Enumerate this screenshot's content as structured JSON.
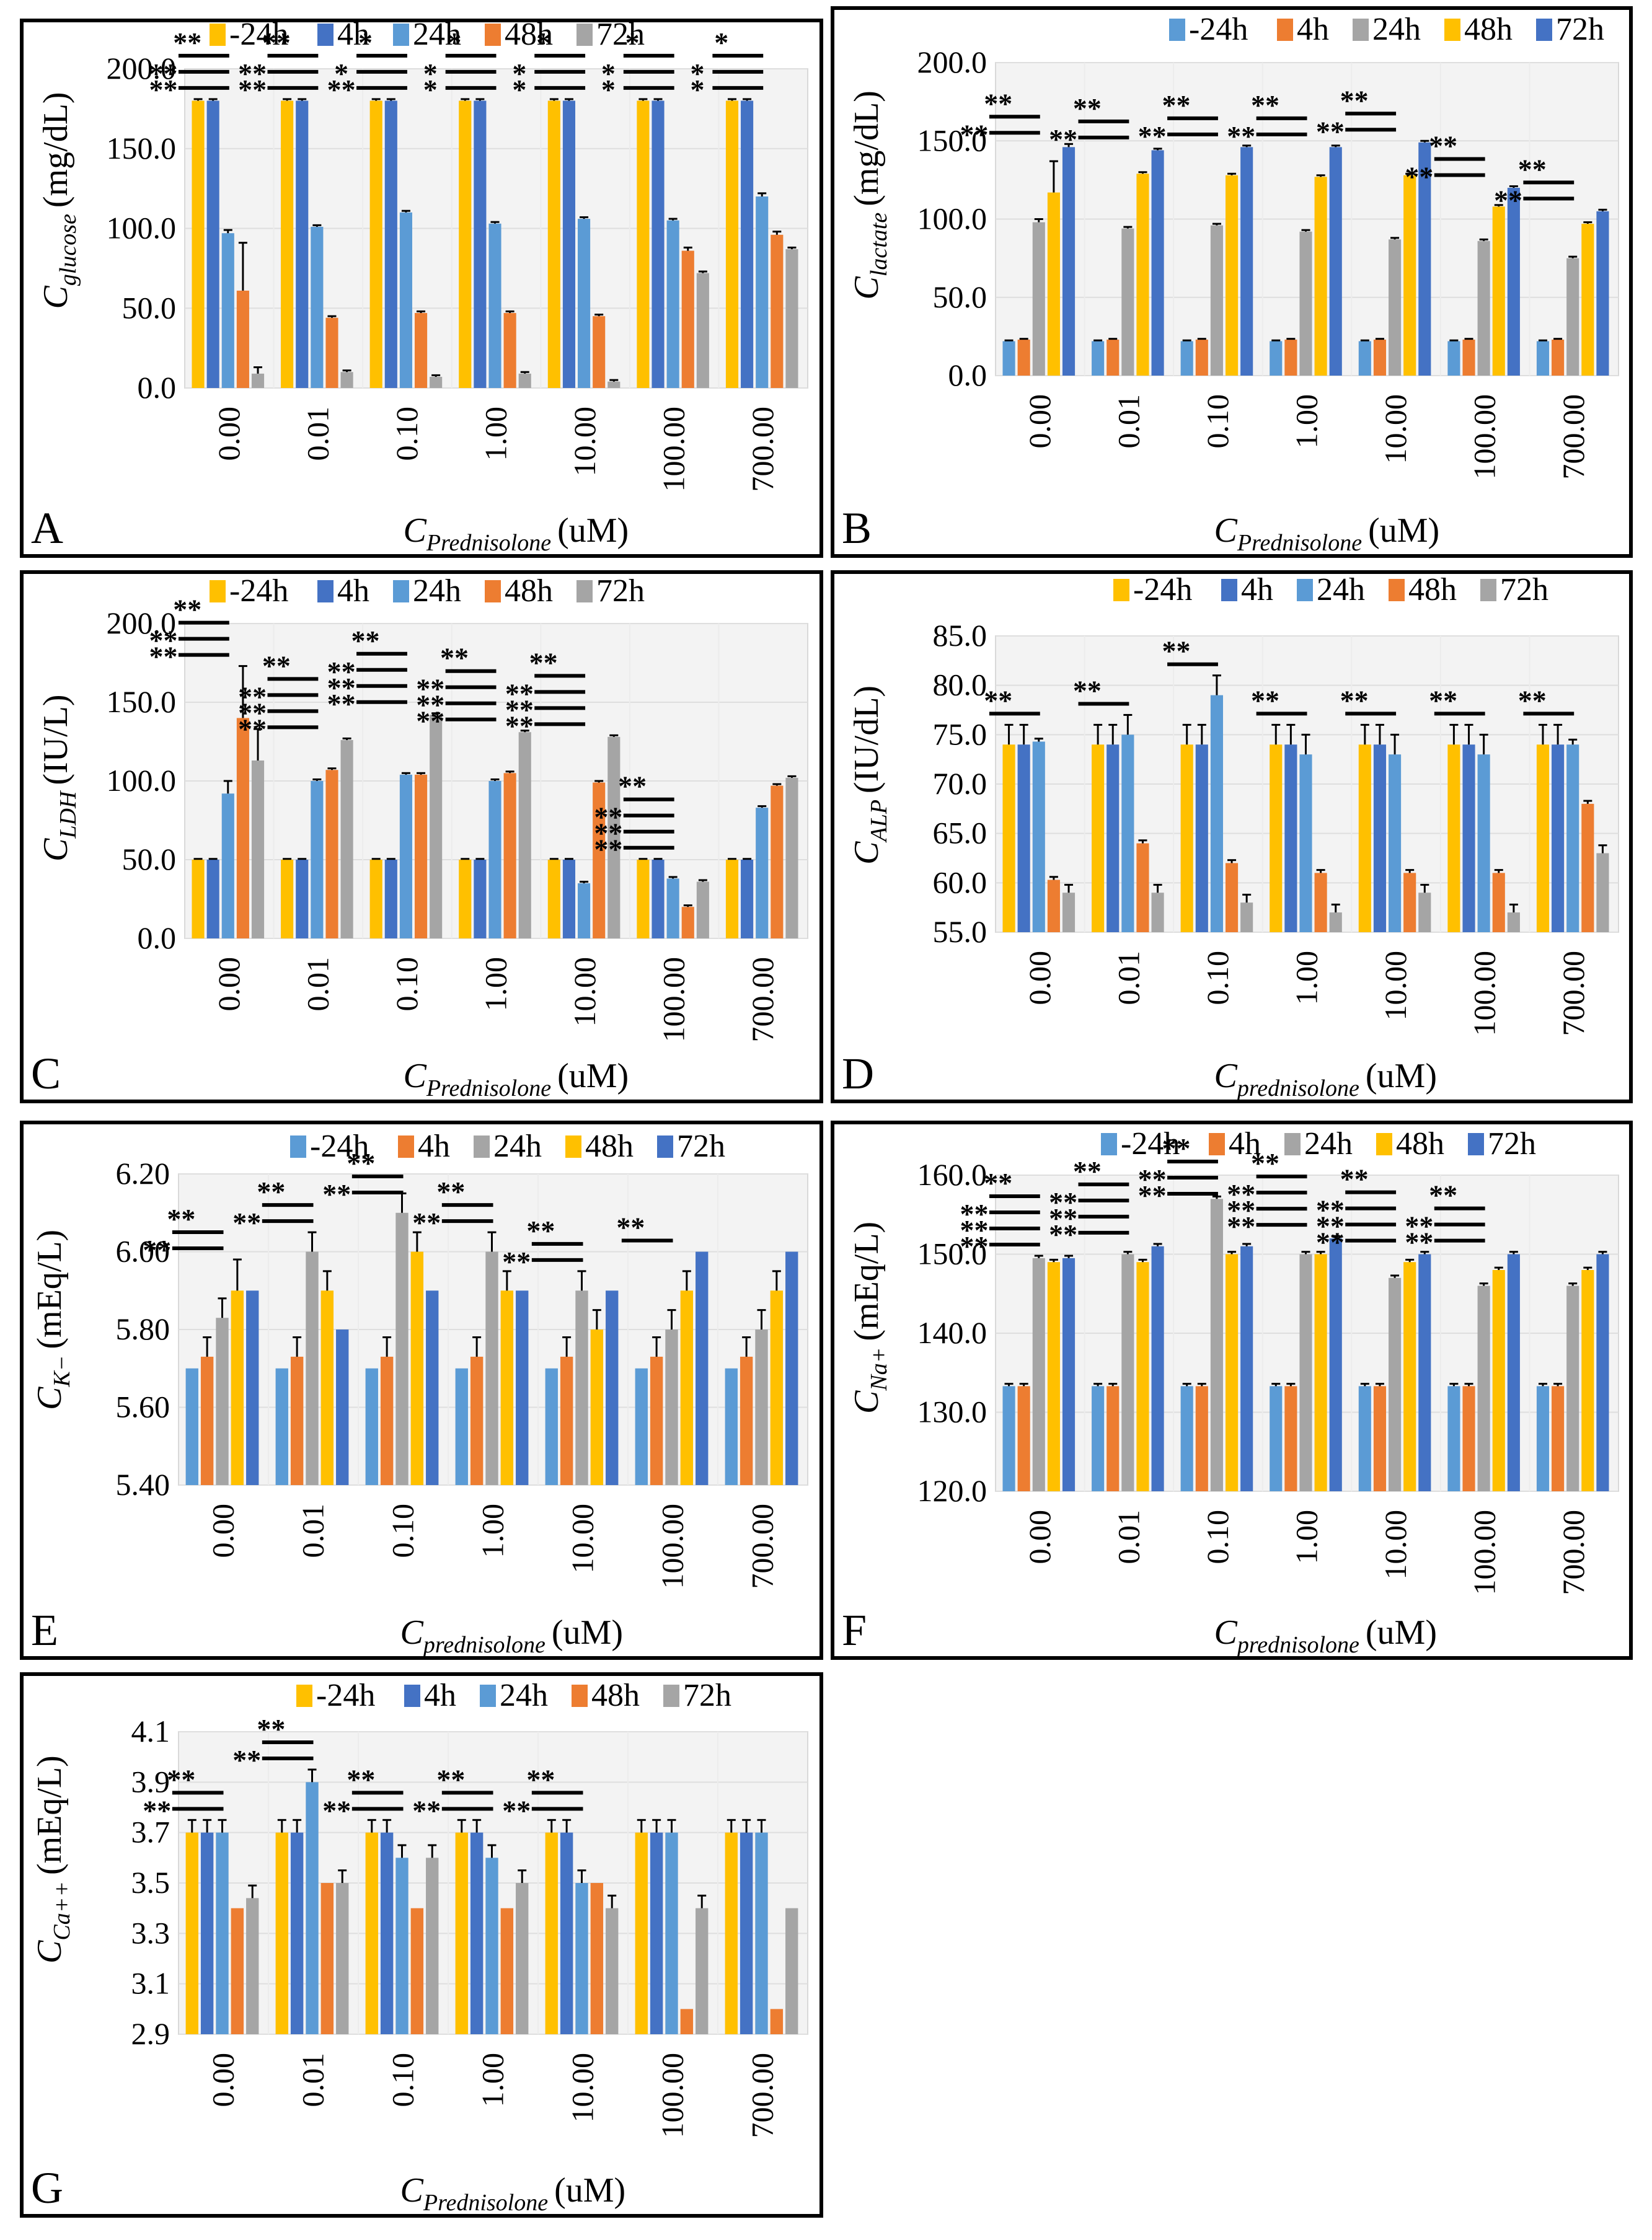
{
  "chart_data": [
    {
      "id": "A",
      "type": "bar",
      "letter": "A",
      "ylabel_main": "C",
      "ylabel_sub": "glucose",
      "ylabel_unit": "(mg/dL)",
      "xlabel_main": "C",
      "xlabel_sub": "Prednisolone",
      "xlabel_unit": "(uM)",
      "ylim": [
        0,
        200
      ],
      "yticks": [
        "0.0",
        "50.0",
        "100.0",
        "150.0",
        "200.0"
      ],
      "categories": [
        "0.00",
        "0.01",
        "0.10",
        "1.00",
        "10.00",
        "100.00",
        "700.00"
      ],
      "series": [
        {
          "name": "-24h",
          "color": "#FFC000",
          "values": [
            180,
            180,
            180,
            180,
            180,
            180,
            180
          ]
        },
        {
          "name": "4h",
          "color": "#4472C4",
          "values": [
            180,
            180,
            180,
            180,
            180,
            180,
            180
          ]
        },
        {
          "name": "24h",
          "color": "#5B9BD5",
          "values": [
            97,
            101,
            110,
            103,
            106,
            105,
            120
          ]
        },
        {
          "name": "48h",
          "color": "#ED7D31",
          "values": [
            61,
            44,
            47,
            47,
            45,
            86,
            96
          ]
        },
        {
          "name": "72h",
          "color": "#A5A5A5",
          "values": [
            9,
            10,
            7,
            9,
            4,
            72,
            87
          ]
        }
      ],
      "errors": [
        [
          1,
          1,
          1,
          1,
          1,
          1,
          1
        ],
        [
          1,
          1,
          1,
          1,
          1,
          1,
          1
        ],
        [
          2,
          1,
          1,
          1,
          1,
          1,
          2
        ],
        [
          30,
          1,
          1,
          1,
          1,
          2,
          2
        ],
        [
          4,
          1,
          1,
          1,
          1,
          1,
          1
        ]
      ],
      "sig_labels": [
        "**",
        "**",
        "**",
        "**",
        "**",
        "**",
        "**",
        "*",
        "*",
        "*",
        "*",
        "*",
        "*",
        "*",
        "*",
        "*",
        "*",
        "*",
        "*",
        "*",
        "*"
      ]
    },
    {
      "id": "B",
      "type": "bar",
      "letter": "B",
      "ylabel_main": "C",
      "ylabel_sub": "lactate",
      "ylabel_unit": "(mg/dL)",
      "xlabel_main": "C",
      "xlabel_sub": "Prednisolone",
      "xlabel_unit": "(uM)",
      "ylim": [
        0,
        200
      ],
      "yticks": [
        "0.0",
        "50.0",
        "100.0",
        "150.0",
        "200.0"
      ],
      "categories": [
        "0.00",
        "0.01",
        "0.10",
        "1.00",
        "10.00",
        "100.00",
        "700.00"
      ],
      "series": [
        {
          "name": "-24h",
          "color": "#5B9BD5",
          "values": [
            22,
            22,
            22,
            22,
            22,
            22,
            22
          ]
        },
        {
          "name": "4h",
          "color": "#ED7D31",
          "values": [
            23,
            23,
            23,
            23,
            23,
            23,
            23
          ]
        },
        {
          "name": "24h",
          "color": "#A5A5A5",
          "values": [
            98,
            94,
            96,
            92,
            87,
            86,
            75
          ]
        },
        {
          "name": "48h",
          "color": "#FFC000",
          "values": [
            117,
            129,
            128,
            127,
            128,
            108,
            97
          ]
        },
        {
          "name": "72h",
          "color": "#4472C4",
          "values": [
            146,
            144,
            146,
            146,
            149,
            120,
            105
          ]
        }
      ],
      "errors": [
        [
          0.5,
          0.5,
          0.5,
          0.5,
          0.5,
          0.5,
          0.5
        ],
        [
          0.5,
          0.5,
          0.5,
          0.5,
          0.5,
          0.5,
          0.5
        ],
        [
          2,
          1,
          1,
          1,
          1,
          1,
          1
        ],
        [
          20,
          1,
          1,
          1,
          1,
          1,
          1
        ],
        [
          2,
          1,
          1,
          1,
          1,
          1,
          1
        ]
      ],
      "sig_labels": [
        "**",
        "**",
        "**",
        "**",
        "**",
        "**",
        "**",
        "**",
        "**",
        "**",
        "**",
        "**",
        "**",
        "**"
      ]
    },
    {
      "id": "C",
      "type": "bar",
      "letter": "C",
      "ylabel_main": "C",
      "ylabel_sub": "LDH",
      "ylabel_unit": "(IU/L)",
      "xlabel_main": "C",
      "xlabel_sub": "Prednisolone",
      "xlabel_unit": "(uM)",
      "ylim": [
        0,
        200
      ],
      "yticks": [
        "0.0",
        "50.0",
        "100.0",
        "150.0",
        "200.0"
      ],
      "categories": [
        "0.00",
        "0.01",
        "0.10",
        "1.00",
        "10.00",
        "100.00",
        "700.00"
      ],
      "series": [
        {
          "name": "-24h",
          "color": "#FFC000",
          "values": [
            50,
            50,
            50,
            50,
            50,
            50,
            50
          ]
        },
        {
          "name": "4h",
          "color": "#4472C4",
          "values": [
            50,
            50,
            50,
            50,
            50,
            50,
            50
          ]
        },
        {
          "name": "24h",
          "color": "#5B9BD5",
          "values": [
            92,
            100,
            104,
            100,
            35,
            38,
            83
          ]
        },
        {
          "name": "48h",
          "color": "#ED7D31",
          "values": [
            140,
            107,
            104,
            105,
            99,
            20,
            97
          ]
        },
        {
          "name": "72h",
          "color": "#A5A5A5",
          "values": [
            113,
            126,
            142,
            131,
            128,
            36,
            102
          ]
        }
      ],
      "errors": [
        [
          0.5,
          0.5,
          0.5,
          0.5,
          0.5,
          0.5,
          0.5
        ],
        [
          0.5,
          0.5,
          0.5,
          0.5,
          0.5,
          0.5,
          0.5
        ],
        [
          8,
          1,
          1,
          1,
          1,
          1,
          1
        ],
        [
          33,
          1,
          1,
          1,
          1,
          1,
          1
        ],
        [
          20,
          1,
          1,
          1,
          1,
          1,
          1
        ]
      ],
      "sig_labels": [
        "**",
        "**",
        "**",
        "**",
        "**",
        "**",
        "**",
        "**",
        "**",
        "**",
        "**",
        "**",
        "**",
        "**",
        "**",
        "**",
        "**",
        "**",
        "**",
        "**",
        "**",
        "**",
        "**"
      ]
    },
    {
      "id": "D",
      "type": "bar",
      "letter": "D",
      "ylabel_main": "C",
      "ylabel_sub": "ALP",
      "ylabel_unit": "(IU/dL)",
      "xlabel_main": "C",
      "xlabel_sub": "prednisolone",
      "xlabel_unit": "(uM)",
      "ylim": [
        55,
        85
      ],
      "yticks": [
        "55.0",
        "60.0",
        "65.0",
        "70.0",
        "75.0",
        "80.0",
        "85.0"
      ],
      "categories": [
        "0.00",
        "0.01",
        "0.10",
        "1.00",
        "10.00",
        "100.00",
        "700.00"
      ],
      "series": [
        {
          "name": "-24h",
          "color": "#FFC000",
          "values": [
            74,
            74,
            74,
            74,
            74,
            74,
            74
          ]
        },
        {
          "name": "4h",
          "color": "#4472C4",
          "values": [
            74,
            74,
            74,
            74,
            74,
            74,
            74
          ]
        },
        {
          "name": "24h",
          "color": "#5B9BD5",
          "values": [
            74.3,
            75,
            79,
            73,
            73,
            73,
            74
          ]
        },
        {
          "name": "48h",
          "color": "#ED7D31",
          "values": [
            60.3,
            64,
            62,
            61,
            61,
            61,
            68
          ]
        },
        {
          "name": "72h",
          "color": "#A5A5A5",
          "values": [
            59,
            59,
            58,
            57,
            59,
            57,
            63
          ]
        }
      ],
      "errors": [
        [
          2,
          2,
          2,
          2,
          2,
          2,
          2
        ],
        [
          2,
          2,
          2,
          2,
          2,
          2,
          2
        ],
        [
          0.3,
          2,
          2,
          2,
          2,
          2,
          0.5
        ],
        [
          0.3,
          0.3,
          0.3,
          0.3,
          0.3,
          0.3,
          0.3
        ],
        [
          0.8,
          0.8,
          0.8,
          0.8,
          0.8,
          0.8,
          0.8
        ]
      ],
      "sig_labels": [
        "**",
        "**",
        "**",
        "**",
        "**",
        "**",
        "**"
      ]
    },
    {
      "id": "E",
      "type": "bar",
      "letter": "E",
      "ylabel_main": "C",
      "ylabel_sub": "K−",
      "ylabel_unit": "(mEq/L)",
      "xlabel_main": "C",
      "xlabel_sub": "prednisolone",
      "xlabel_unit": "(uM)",
      "ylim": [
        5.4,
        6.2
      ],
      "yticks": [
        "5.40",
        "5.60",
        "5.80",
        "6.00",
        "6.20"
      ],
      "categories": [
        "0.00",
        "0.01",
        "0.10",
        "1.00",
        "10.00",
        "100.00",
        "700.00"
      ],
      "series": [
        {
          "name": "-24h",
          "color": "#5B9BD5",
          "values": [
            5.7,
            5.7,
            5.7,
            5.7,
            5.7,
            5.7,
            5.7
          ]
        },
        {
          "name": "4h",
          "color": "#ED7D31",
          "values": [
            5.73,
            5.73,
            5.73,
            5.73,
            5.73,
            5.73,
            5.73
          ]
        },
        {
          "name": "24h",
          "color": "#A5A5A5",
          "values": [
            5.83,
            6.0,
            6.1,
            6.0,
            5.9,
            5.8,
            5.8
          ]
        },
        {
          "name": "48h",
          "color": "#FFC000",
          "values": [
            5.9,
            5.9,
            6.0,
            5.9,
            5.8,
            5.9,
            5.9
          ]
        },
        {
          "name": "72h",
          "color": "#4472C4",
          "values": [
            5.9,
            5.8,
            5.9,
            5.9,
            5.9,
            6.0,
            6.0
          ]
        }
      ],
      "errors": [
        [
          0,
          0,
          0,
          0,
          0,
          0,
          0
        ],
        [
          0.05,
          0.05,
          0.05,
          0.05,
          0.05,
          0.05,
          0.05
        ],
        [
          0.05,
          0.05,
          0.05,
          0.05,
          0.05,
          0.05,
          0.05
        ],
        [
          0.08,
          0.05,
          0.05,
          0.05,
          0.05,
          0.05,
          0.05
        ],
        [
          0,
          0,
          0,
          0,
          0,
          0,
          0
        ]
      ],
      "sig_labels": [
        "**",
        "**",
        "**",
        "**",
        "**",
        "**",
        "**",
        "**",
        "**",
        "**",
        "**"
      ]
    },
    {
      "id": "F",
      "type": "bar",
      "letter": "F",
      "ylabel_main": "C",
      "ylabel_sub": "Na+",
      "ylabel_unit": "(mEq/L)",
      "xlabel_main": "C",
      "xlabel_sub": "prednisolone",
      "xlabel_unit": "(uM)",
      "ylim": [
        120,
        160
      ],
      "yticks": [
        "120.0",
        "130.0",
        "140.0",
        "150.0",
        "160.0"
      ],
      "categories": [
        "0.00",
        "0.01",
        "0.10",
        "1.00",
        "10.00",
        "100.00",
        "700.00"
      ],
      "series": [
        {
          "name": "-24h",
          "color": "#5B9BD5",
          "values": [
            133.3,
            133.3,
            133.3,
            133.3,
            133.3,
            133.3,
            133.3
          ]
        },
        {
          "name": "4h",
          "color": "#ED7D31",
          "values": [
            133.3,
            133.3,
            133.3,
            133.3,
            133.3,
            133.3,
            133.3
          ]
        },
        {
          "name": "24h",
          "color": "#A5A5A5",
          "values": [
            149.5,
            150,
            157,
            150,
            147,
            146,
            146
          ]
        },
        {
          "name": "48h",
          "color": "#FFC000",
          "values": [
            149,
            149,
            150,
            150,
            149,
            148,
            148
          ]
        },
        {
          "name": "72h",
          "color": "#4472C4",
          "values": [
            149.5,
            151,
            151,
            152,
            150,
            150,
            150
          ]
        }
      ],
      "errors": [
        [
          0.3,
          0.3,
          0.3,
          0.3,
          0.3,
          0.3,
          0.3
        ],
        [
          0.3,
          0.3,
          0.3,
          0.3,
          0.3,
          0.3,
          0.3
        ],
        [
          0.3,
          0.3,
          0.3,
          0.3,
          0.3,
          0.3,
          0.3
        ],
        [
          0.3,
          0.3,
          0.3,
          0.3,
          0.3,
          0.3,
          0.3
        ],
        [
          0.3,
          0.3,
          0.3,
          0.3,
          0.3,
          0.3,
          0.3
        ]
      ],
      "sig_labels": [
        "**",
        "**",
        "**",
        "**",
        "**",
        "**",
        "**",
        "**",
        "**",
        "**",
        "**",
        "**",
        "**",
        "**",
        "**",
        "**",
        "**",
        "**",
        "**",
        "**",
        "**",
        "**"
      ]
    },
    {
      "id": "G",
      "type": "bar",
      "letter": "G",
      "ylabel_main": "C",
      "ylabel_sub": "Ca++",
      "ylabel_unit": "(mEq/L)",
      "xlabel_main": "C",
      "xlabel_sub": "Prednisolone",
      "xlabel_unit": "(uM)",
      "ylim": [
        2.9,
        4.1
      ],
      "yticks": [
        "2.9",
        "3.1",
        "3.3",
        "3.5",
        "3.7",
        "3.9",
        "4.1"
      ],
      "categories": [
        "0.00",
        "0.01",
        "0.10",
        "1.00",
        "10.00",
        "100.00",
        "700.00"
      ],
      "series": [
        {
          "name": "-24h",
          "color": "#FFC000",
          "values": [
            3.7,
            3.7,
            3.7,
            3.7,
            3.7,
            3.7,
            3.7
          ]
        },
        {
          "name": "4h",
          "color": "#4472C4",
          "values": [
            3.7,
            3.7,
            3.7,
            3.7,
            3.7,
            3.7,
            3.7
          ]
        },
        {
          "name": "24h",
          "color": "#5B9BD5",
          "values": [
            3.7,
            3.9,
            3.6,
            3.6,
            3.5,
            3.7,
            3.7
          ]
        },
        {
          "name": "48h",
          "color": "#ED7D31",
          "values": [
            3.4,
            3.5,
            3.4,
            3.4,
            3.5,
            3.0,
            3.0
          ]
        },
        {
          "name": "72h",
          "color": "#A5A5A5",
          "values": [
            3.44,
            3.5,
            3.6,
            3.5,
            3.4,
            3.4,
            3.4
          ]
        }
      ],
      "errors": [
        [
          0.05,
          0.05,
          0.05,
          0.05,
          0.05,
          0.05,
          0.05
        ],
        [
          0.05,
          0.05,
          0.05,
          0.05,
          0.05,
          0.05,
          0.05
        ],
        [
          0.05,
          0.05,
          0.05,
          0.05,
          0.05,
          0.05,
          0.05
        ],
        [
          0,
          0,
          0,
          0,
          0,
          0,
          0
        ],
        [
          0.05,
          0.05,
          0.05,
          0.05,
          0.05,
          0.05,
          0
        ]
      ],
      "sig_labels": [
        "**",
        "**",
        "**",
        "**",
        "**",
        "**",
        "**",
        "**",
        "**",
        "**"
      ]
    }
  ]
}
